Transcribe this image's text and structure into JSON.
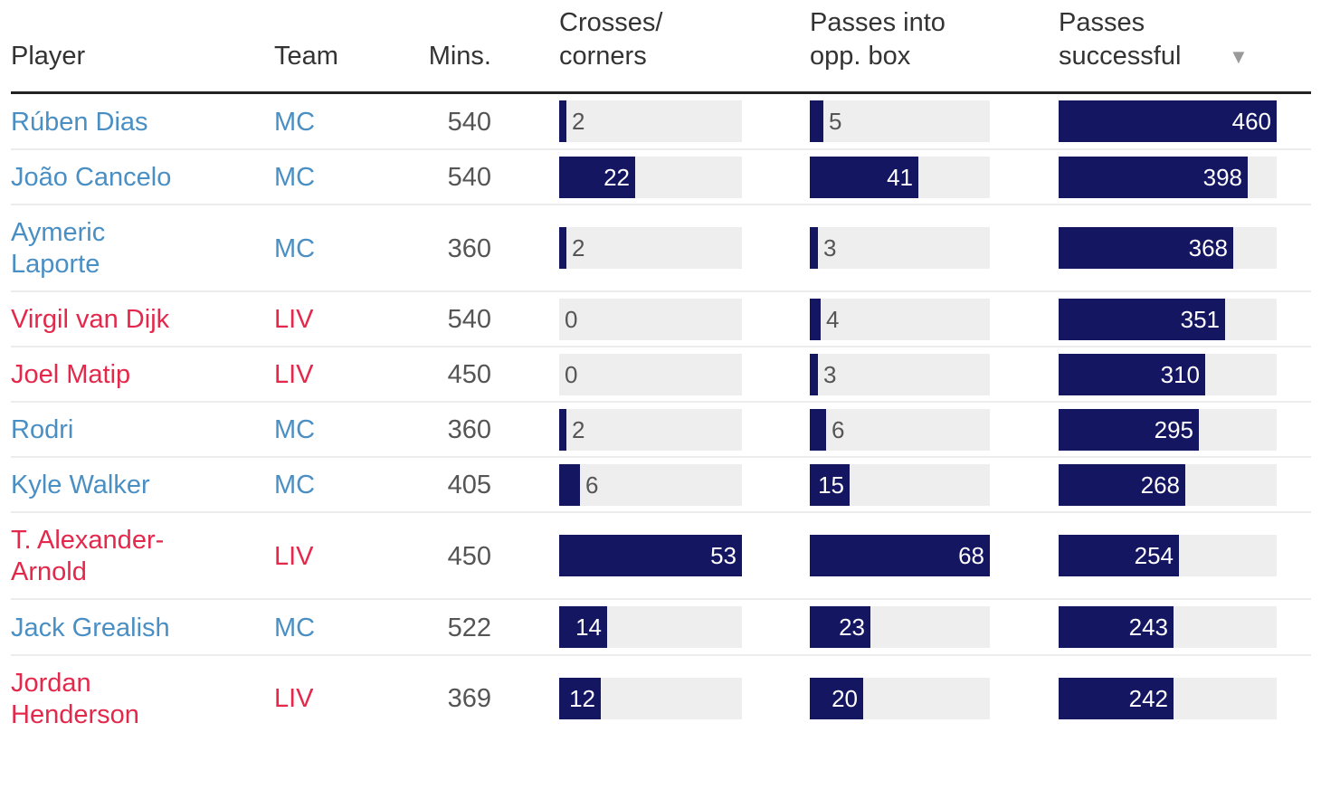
{
  "colors": {
    "bar": "#141661",
    "track": "#eeeeee",
    "MC": "#4a8fc4",
    "LIV": "#e3284b",
    "sort_arrow": "#9a9a9a"
  },
  "header": {
    "player": "Player",
    "team": "Team",
    "mins": "Mins.",
    "crosses_l1": "Crosses/",
    "crosses_l2": "corners",
    "box_l1": "Passes into",
    "box_l2": "opp. box",
    "passes_l1": "Passes",
    "passes_l2": "successful",
    "sort_icon": "▼"
  },
  "chart_data": {
    "type": "table",
    "sorted_by": "Passes successful",
    "sort_order": "descending",
    "columns": [
      "Player",
      "Team",
      "Mins.",
      "Crosses/ corners",
      "Passes into opp. box",
      "Passes successful"
    ],
    "scales": {
      "crosses": 53,
      "box": 68,
      "passes": 460
    },
    "rows": [
      {
        "player": [
          "Rúben Dias"
        ],
        "team": "MC",
        "mins": "540",
        "crosses": 2,
        "box": 5,
        "passes": 460
      },
      {
        "player": [
          "João Cancelo"
        ],
        "team": "MC",
        "mins": "540",
        "crosses": 22,
        "box": 41,
        "passes": 398
      },
      {
        "player": [
          "Aymeric",
          "Laporte"
        ],
        "team": "MC",
        "mins": "360",
        "crosses": 2,
        "box": 3,
        "passes": 368
      },
      {
        "player": [
          "Virgil van Dijk"
        ],
        "team": "LIV",
        "mins": "540",
        "crosses": 0,
        "box": 4,
        "passes": 351
      },
      {
        "player": [
          "Joel Matip"
        ],
        "team": "LIV",
        "mins": "450",
        "crosses": 0,
        "box": 3,
        "passes": 310
      },
      {
        "player": [
          "Rodri"
        ],
        "team": "MC",
        "mins": "360",
        "crosses": 2,
        "box": 6,
        "passes": 295
      },
      {
        "player": [
          "Kyle Walker"
        ],
        "team": "MC",
        "mins": "405",
        "crosses": 6,
        "box": 15,
        "passes": 268
      },
      {
        "player": [
          "T. Alexander-",
          "Arnold"
        ],
        "team": "LIV",
        "mins": "450",
        "crosses": 53,
        "box": 68,
        "passes": 254
      },
      {
        "player": [
          "Jack Grealish"
        ],
        "team": "MC",
        "mins": "522",
        "crosses": 14,
        "box": 23,
        "passes": 243
      },
      {
        "player": [
          "Jordan",
          "Henderson"
        ],
        "team": "LIV",
        "mins": "369",
        "crosses": 12,
        "box": 20,
        "passes": 242
      }
    ]
  }
}
